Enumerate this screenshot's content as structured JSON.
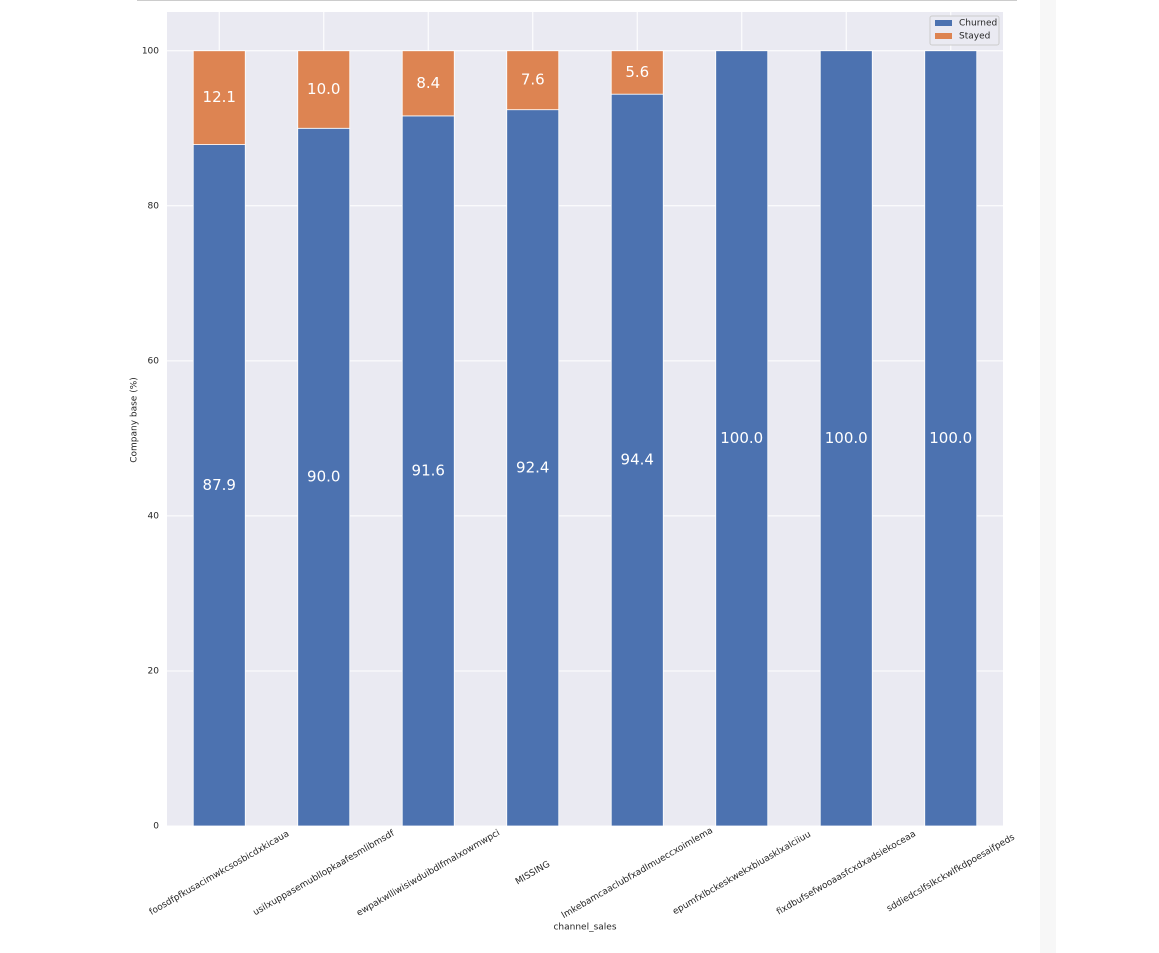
{
  "chart_data": {
    "type": "stacked-bar",
    "x_label": "channel_sales",
    "y_label": "Company base (%)",
    "categories": [
      "foosdfpfkusacimwkcsosbicdxkicaua",
      "usilxuppasemubllopkaafesmlibmsdf",
      "ewpakwlliwisiwduibdlfmalxowmwpci",
      "MISSING",
      "lmkebamcaaclubfxadlmueccxoimlema",
      "epumfxlbckeskwekxbiuasklxalciiuu",
      "fixdbufsefwooaasfcxdxadsiekoceaa",
      "sddiedcslfslkckwlfkdpoesaifpeds"
    ],
    "series": [
      {
        "name": "Churned",
        "color": "#4c72b0",
        "values": [
          87.9,
          90.0,
          91.6,
          92.4,
          94.4,
          100.0,
          100.0,
          100.0
        ],
        "value_labels": [
          "87.9",
          "90.0",
          "91.6",
          "92.4",
          "94.4",
          "100.0",
          "100.0",
          "100.0"
        ]
      },
      {
        "name": "Stayed",
        "color": "#dd8452",
        "values": [
          12.1,
          10.0,
          8.4,
          7.6,
          5.6,
          0,
          0,
          0
        ],
        "value_labels": [
          "12.1",
          "10.0",
          "8.4",
          "7.6",
          "5.6",
          null,
          null,
          null
        ]
      }
    ],
    "ylim": [
      0,
      105
    ],
    "yticks": [
      0,
      20,
      40,
      60,
      80,
      100
    ],
    "grid": true,
    "legend": "upper right"
  }
}
